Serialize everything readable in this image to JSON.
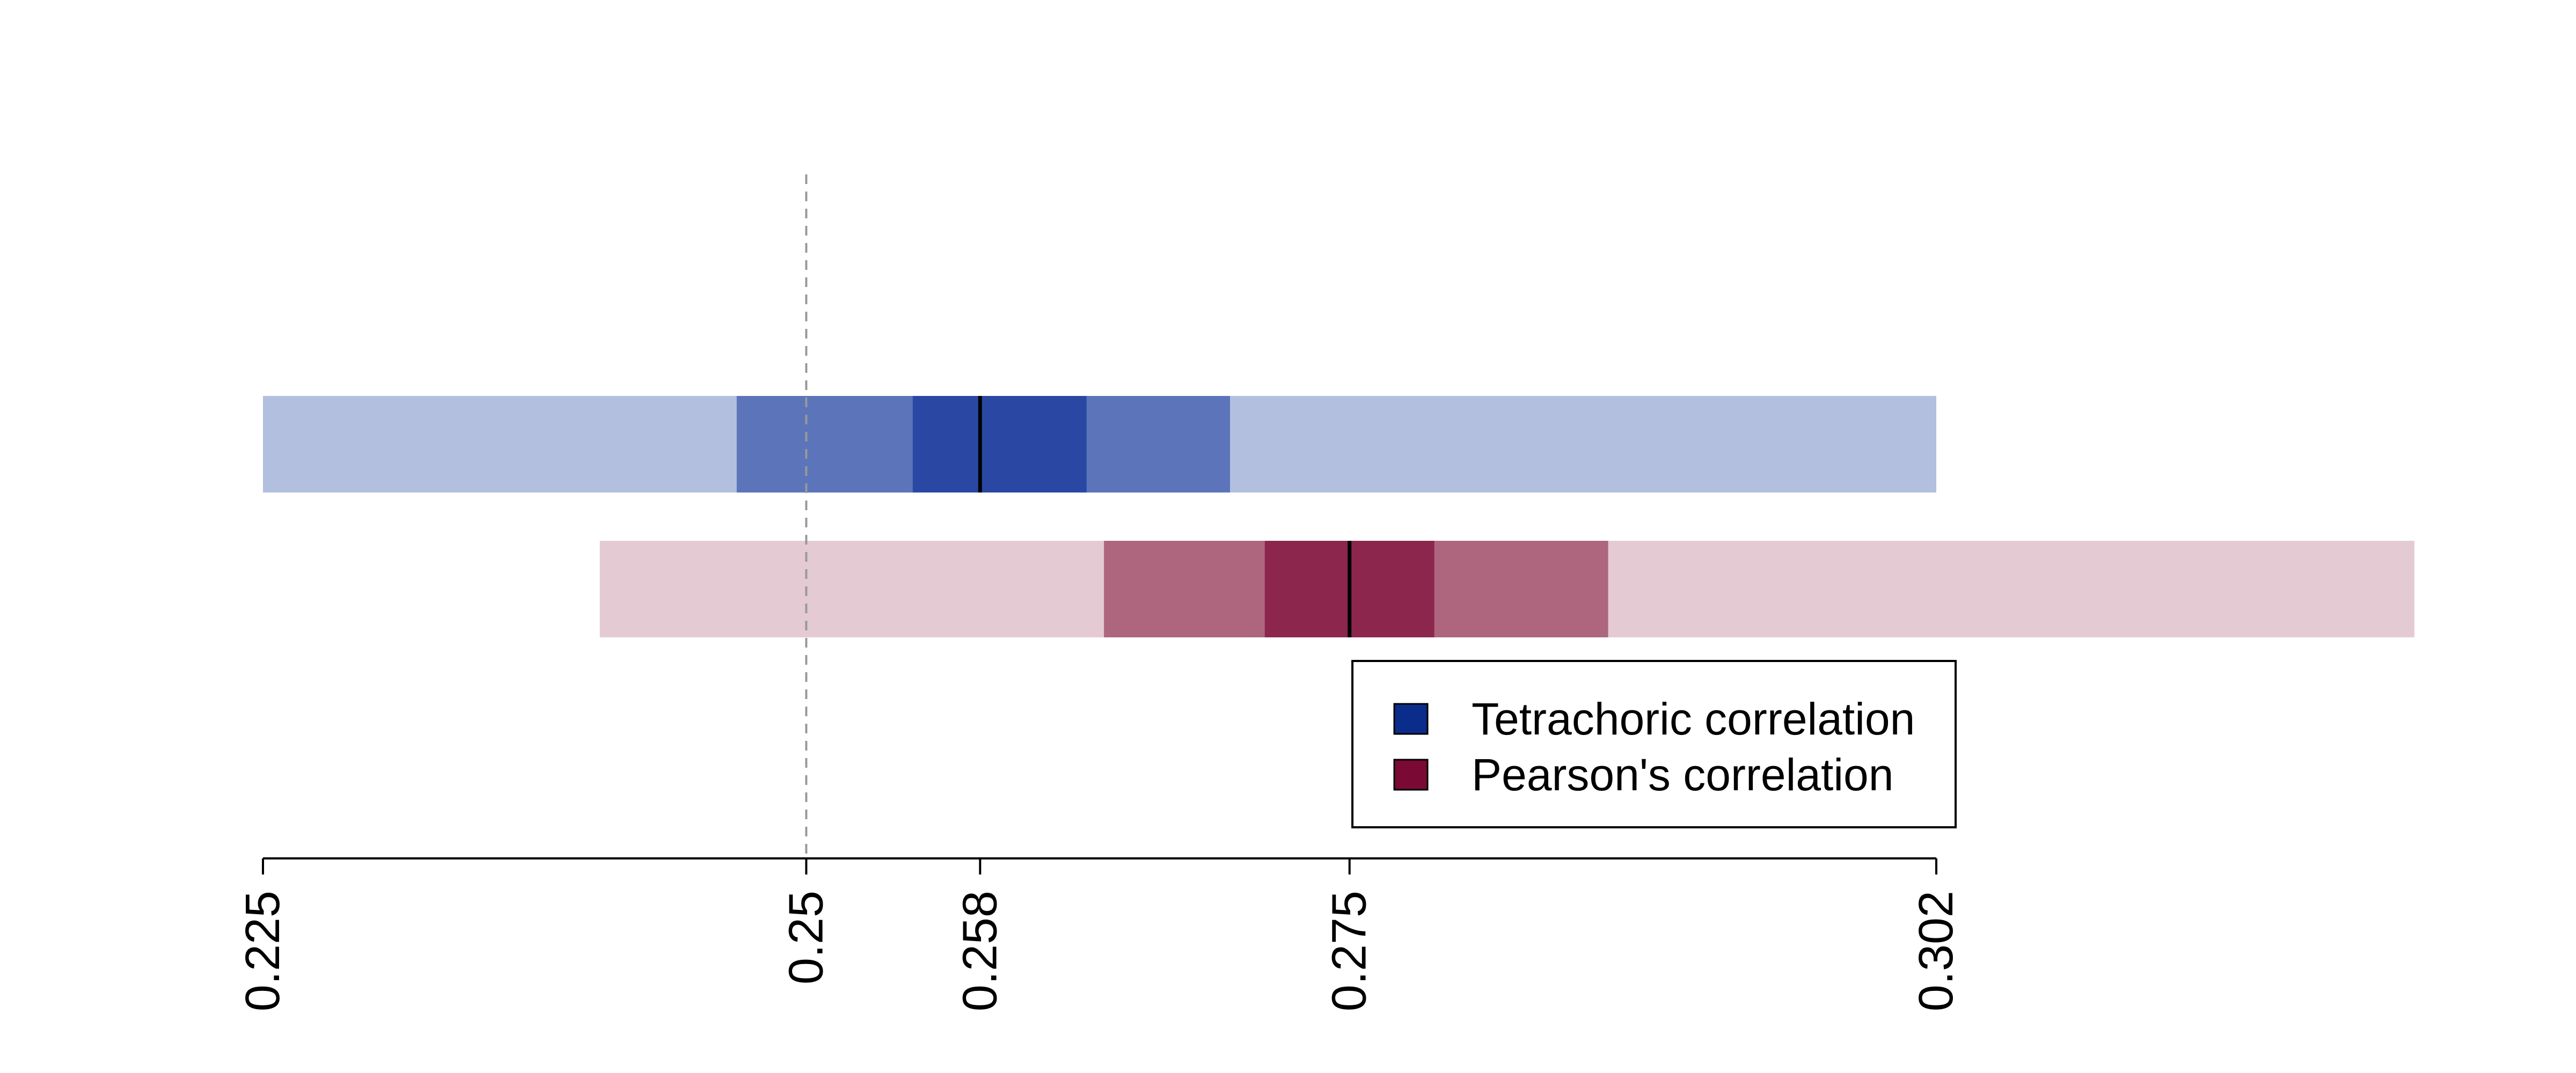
{
  "chart_data": {
    "type": "interval",
    "orientation": "horizontal",
    "xlim": [
      0.225,
      0.302
    ],
    "x_ticks": [
      0.225,
      0.25,
      0.258,
      0.275,
      0.302
    ],
    "x_tick_labels": [
      "0.225",
      "0.25",
      "0.258",
      "0.275",
      "0.302"
    ],
    "reference_line": {
      "x": 0.25,
      "style": "dashed",
      "color": "#999999"
    },
    "series": [
      {
        "name": "Tetrachoric correlation",
        "legend_color": "#0A2D8C",
        "point_estimate": 0.258,
        "intervals": [
          {
            "low": 0.225,
            "high": 0.302,
            "color": "#B2BFDF"
          },
          {
            "low": 0.2468,
            "high": 0.2695,
            "color": "#5C75BA"
          },
          {
            "low": 0.2549,
            "high": 0.2629,
            "color": "#2A48A3"
          }
        ]
      },
      {
        "name": "Pearson's correlation",
        "legend_color": "#7A0A33",
        "point_estimate": 0.275,
        "intervals": [
          {
            "low": 0.2405,
            "high": 0.324,
            "color": "#E3CAD3"
          },
          {
            "low": 0.2637,
            "high": 0.2869,
            "color": "#AD667E"
          },
          {
            "low": 0.2711,
            "high": 0.2789,
            "color": "#8C264D"
          }
        ]
      }
    ],
    "legend_position": "bottom-right",
    "grid": false
  }
}
